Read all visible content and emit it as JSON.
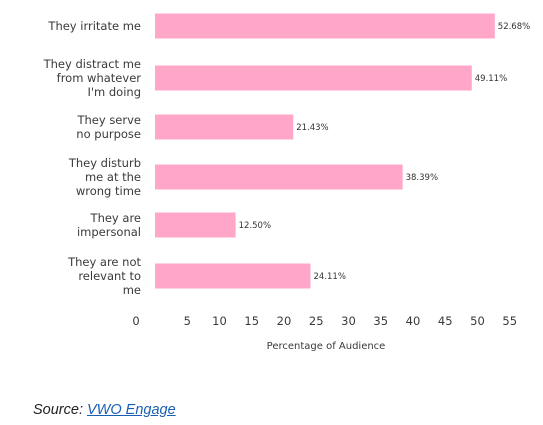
{
  "chart_data": {
    "type": "bar",
    "orientation": "horizontal",
    "categories": [
      "They irritate me",
      "They distract me from whatever I'm doing",
      "They serve no purpose",
      "They disturb me at the wrong time",
      "They are impersonal",
      "They are not relevant to me"
    ],
    "category_lines": [
      [
        "They irritate me"
      ],
      [
        "They distract me",
        "from whatever",
        "I'm doing"
      ],
      [
        "They serve",
        "no purpose"
      ],
      [
        "They disturb",
        "me at the",
        "wrong time"
      ],
      [
        "They are",
        "impersonal"
      ],
      [
        "They are not",
        "relevant to",
        "me"
      ]
    ],
    "values": [
      52.68,
      49.11,
      21.43,
      38.39,
      12.5,
      24.11
    ],
    "data_labels": [
      "52.68%",
      "49.11%",
      "21.43%",
      "38.39%",
      "12.50%",
      "24.11%"
    ],
    "xlabel": "Percentage of Audience",
    "xticks": [
      0,
      5,
      10,
      15,
      20,
      25,
      30,
      35,
      40,
      45,
      50,
      55
    ],
    "xlim": [
      0,
      55
    ],
    "grid": false,
    "bar_color": "#ffa6c9"
  },
  "source": {
    "prefix": "Source: ",
    "link_text": "VWO Engage",
    "link_color": "#1a5fb4"
  }
}
